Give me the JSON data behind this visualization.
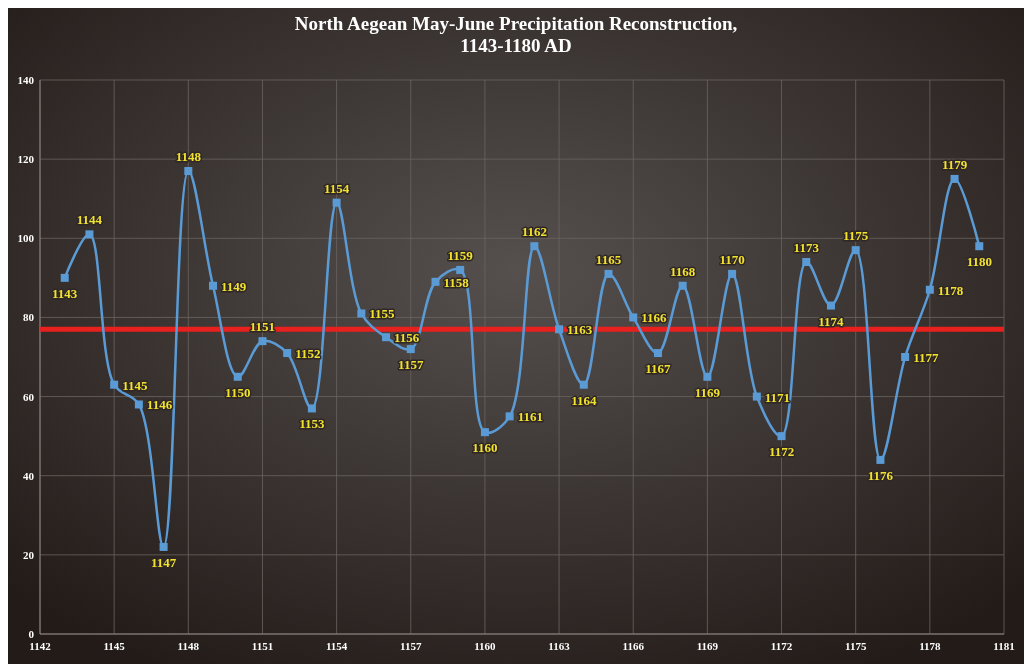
{
  "chart_data": {
    "type": "line",
    "title": "North Aegean May-June Precipitation Reconstruction,\n1143-1180 AD",
    "x": [
      1143,
      1144,
      1145,
      1146,
      1147,
      1148,
      1149,
      1150,
      1151,
      1152,
      1153,
      1154,
      1155,
      1156,
      1157,
      1158,
      1159,
      1160,
      1161,
      1162,
      1163,
      1164,
      1165,
      1166,
      1167,
      1168,
      1169,
      1170,
      1171,
      1172,
      1173,
      1174,
      1175,
      1176,
      1177,
      1178,
      1179,
      1180
    ],
    "series": [
      {
        "color": "#5b9bd5",
        "values": [
          90,
          101,
          63,
          58,
          22,
          117,
          88,
          65,
          74,
          71,
          57,
          109,
          81,
          75,
          72,
          89,
          92,
          51,
          55,
          98,
          77,
          63,
          91,
          80,
          71,
          88,
          65,
          91,
          60,
          50,
          94,
          83,
          97,
          44,
          70,
          87,
          115,
          98
        ]
      }
    ],
    "annotations": [
      {
        "text": "1143",
        "x": 1143,
        "y": 90
      },
      {
        "text": "1144",
        "x": 1144,
        "y": 101
      },
      {
        "text": "1145",
        "x": 1145,
        "y": 63
      },
      {
        "text": "1146",
        "x": 1146,
        "y": 58
      },
      {
        "text": "1147",
        "x": 1147,
        "y": 22
      },
      {
        "text": "1148",
        "x": 1148,
        "y": 117
      },
      {
        "text": "1149",
        "x": 1149,
        "y": 88
      },
      {
        "text": "1150",
        "x": 1150,
        "y": 65
      },
      {
        "text": "1151",
        "x": 1151,
        "y": 74
      },
      {
        "text": "1152",
        "x": 1152,
        "y": 71
      },
      {
        "text": "1153",
        "x": 1153,
        "y": 57
      },
      {
        "text": "1154",
        "x": 1154,
        "y": 109
      },
      {
        "text": "1155",
        "x": 1155,
        "y": 81
      },
      {
        "text": "1156",
        "x": 1156,
        "y": 75
      },
      {
        "text": "1157",
        "x": 1157,
        "y": 72
      },
      {
        "text": "1158",
        "x": 1158,
        "y": 89
      },
      {
        "text": "1159",
        "x": 1159,
        "y": 92
      },
      {
        "text": "1160",
        "x": 1160,
        "y": 51
      },
      {
        "text": "1161",
        "x": 1161,
        "y": 55
      },
      {
        "text": "1162",
        "x": 1162,
        "y": 98
      },
      {
        "text": "1163",
        "x": 1163,
        "y": 77
      },
      {
        "text": "1164",
        "x": 1164,
        "y": 63
      },
      {
        "text": "1165",
        "x": 1165,
        "y": 91
      },
      {
        "text": "1166",
        "x": 1166,
        "y": 80
      },
      {
        "text": "1167",
        "x": 1167,
        "y": 71
      },
      {
        "text": "1168",
        "x": 1168,
        "y": 88
      },
      {
        "text": "1169",
        "x": 1169,
        "y": 65
      },
      {
        "text": "1170",
        "x": 1170,
        "y": 91
      },
      {
        "text": "1171",
        "x": 1171,
        "y": 60
      },
      {
        "text": "1172",
        "x": 1172,
        "y": 50
      },
      {
        "text": "1173",
        "x": 1173,
        "y": 94
      },
      {
        "text": "1174",
        "x": 1174,
        "y": 83
      },
      {
        "text": "1175",
        "x": 1175,
        "y": 97
      },
      {
        "text": "1176",
        "x": 1176,
        "y": 44
      },
      {
        "text": "1177",
        "x": 1177,
        "y": 70
      },
      {
        "text": "1178",
        "x": 1178,
        "y": 87
      },
      {
        "text": "1179",
        "x": 1179,
        "y": 115
      },
      {
        "text": "1180",
        "x": 1180,
        "y": 98
      }
    ],
    "xlim": [
      1142,
      1181
    ],
    "xticks": [
      1142,
      1145,
      1148,
      1151,
      1154,
      1157,
      1160,
      1163,
      1166,
      1169,
      1172,
      1175,
      1178,
      1181
    ],
    "ylim": [
      0,
      140
    ],
    "yticks": [
      0,
      20,
      40,
      60,
      80,
      100,
      120,
      140
    ],
    "grid": true,
    "marker": "square",
    "line_style": "solid",
    "ref_lines": [
      {
        "axis": "y",
        "value": 77,
        "color": "#e8201e"
      }
    ]
  }
}
